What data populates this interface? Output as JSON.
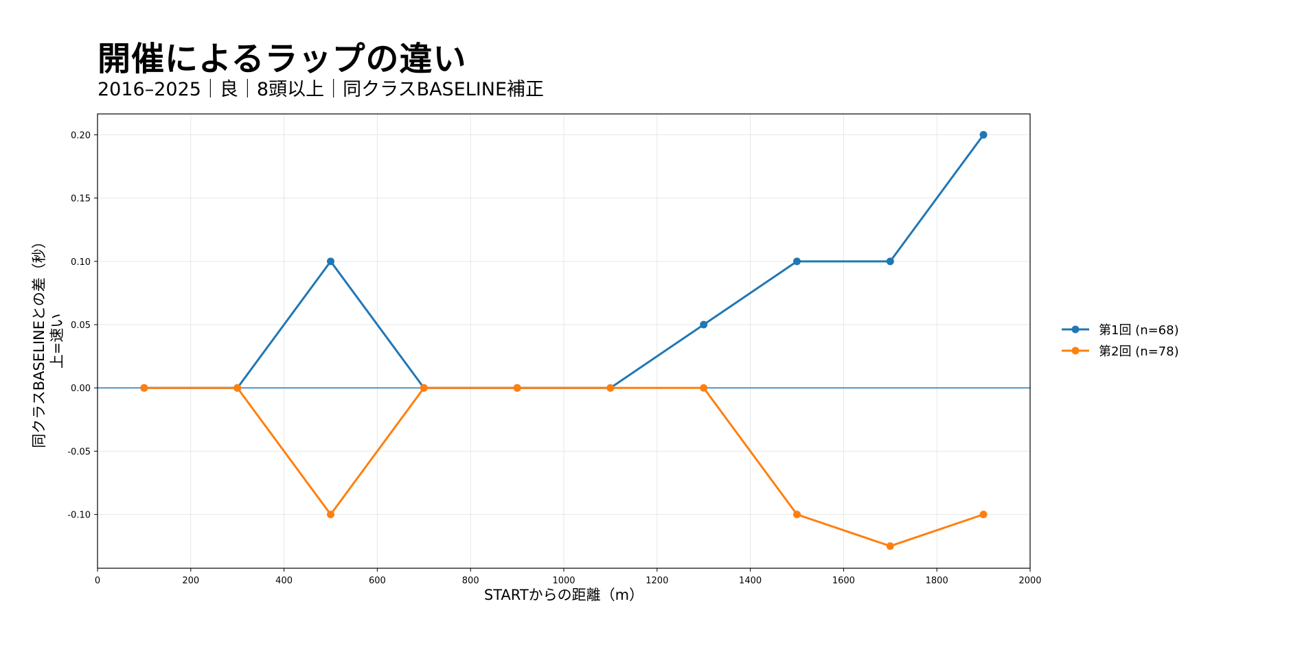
{
  "chart_data": {
    "type": "line",
    "title": "開催によるラップの違い",
    "subtitle": "2016–2025｜良｜8頭以上｜同クラスBASELINE補正",
    "xlabel": "STARTからの距離（m）",
    "ylabel": "同クラスBASELINEとの差（秒）",
    "ylabel2": "上=速い",
    "xlim": [
      0,
      2000
    ],
    "ylim": [
      -0.1425,
      0.2165
    ],
    "xticks": [
      0,
      200,
      400,
      600,
      800,
      1000,
      1200,
      1400,
      1600,
      1800,
      2000
    ],
    "yticks": [
      -0.1,
      -0.05,
      0.0,
      0.05,
      0.1,
      0.15,
      0.2
    ],
    "grid": true,
    "legend_position": "right",
    "reference_line": 0,
    "x": [
      100,
      300,
      500,
      700,
      900,
      1100,
      1300,
      1500,
      1700,
      1900
    ],
    "series": [
      {
        "name": "第1回 (n=68)",
        "color": "#1f77b4",
        "values": [
          0.0,
          0.0,
          0.1,
          0.0,
          0.0,
          0.0,
          0.05,
          0.1,
          0.1,
          0.2
        ]
      },
      {
        "name": "第2回 (n=78)",
        "color": "#ff7f0e",
        "values": [
          0.0,
          0.0,
          -0.1,
          0.0,
          0.0,
          0.0,
          0.0,
          -0.1,
          -0.125,
          -0.1
        ]
      }
    ]
  }
}
